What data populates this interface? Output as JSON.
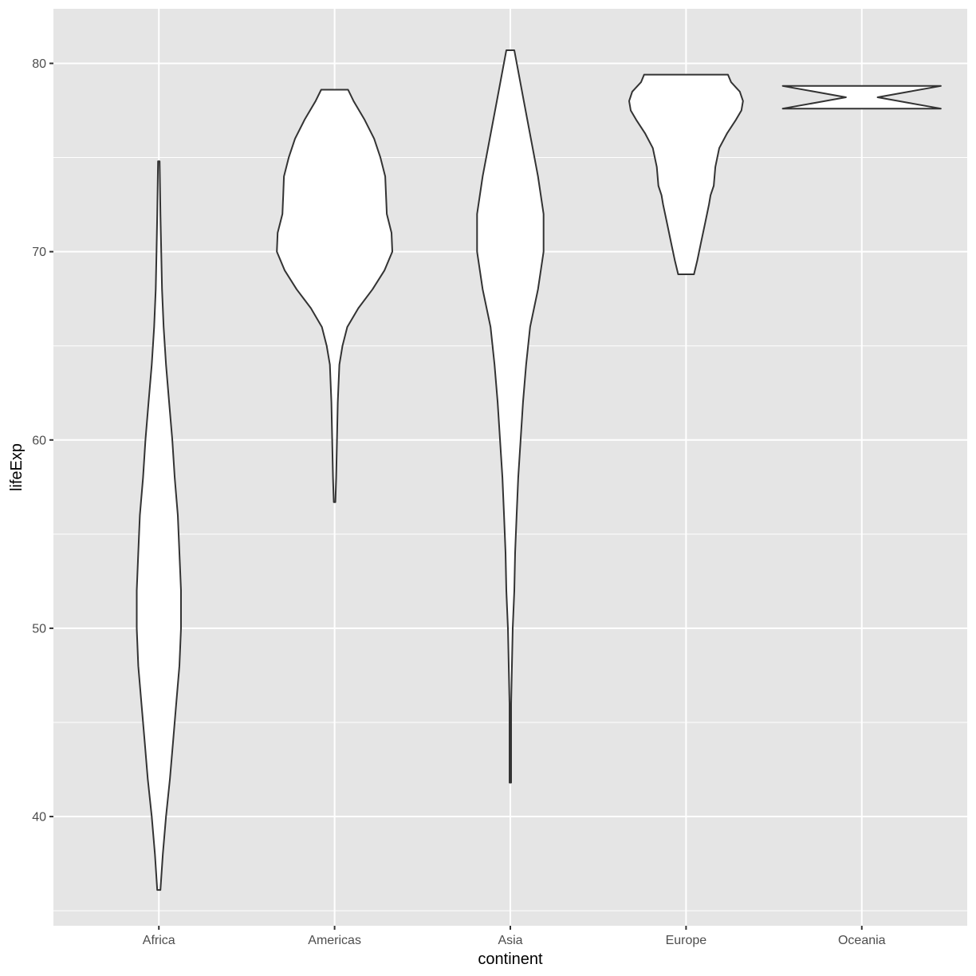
{
  "chart_data": {
    "type": "violin",
    "xlabel": "continent",
    "ylabel": "lifeExp",
    "categories": [
      "Africa",
      "Americas",
      "Asia",
      "Europe",
      "Oceania"
    ],
    "ylim": [
      34.2,
      82.9
    ],
    "yticks": [
      40,
      50,
      60,
      70,
      80
    ],
    "grid": true,
    "legend": "none",
    "colors": {
      "panel": "#e5e5e5",
      "grid": "#ffffff",
      "fill": "#ffffff",
      "outline": "#333333",
      "text": "#4d4d4d"
    },
    "violins": [
      {
        "category": "Africa",
        "min": 36.1,
        "max": 74.8,
        "profile": [
          [
            36.1,
            0.02
          ],
          [
            38,
            0.05
          ],
          [
            40,
            0.09
          ],
          [
            42,
            0.14
          ],
          [
            44,
            0.18
          ],
          [
            46,
            0.22
          ],
          [
            48,
            0.26
          ],
          [
            50,
            0.28
          ],
          [
            52,
            0.28
          ],
          [
            54,
            0.26
          ],
          [
            56,
            0.24
          ],
          [
            58,
            0.2
          ],
          [
            60,
            0.17
          ],
          [
            62,
            0.13
          ],
          [
            64,
            0.09
          ],
          [
            66,
            0.06
          ],
          [
            68,
            0.04
          ],
          [
            70,
            0.03
          ],
          [
            72,
            0.02
          ],
          [
            74.8,
            0.01
          ]
        ]
      },
      {
        "category": "Americas",
        "min": 56.7,
        "max": 78.6,
        "profile": [
          [
            56.7,
            0.01
          ],
          [
            58,
            0.02
          ],
          [
            60,
            0.03
          ],
          [
            62,
            0.04
          ],
          [
            64,
            0.06
          ],
          [
            65,
            0.1
          ],
          [
            66,
            0.16
          ],
          [
            67,
            0.3
          ],
          [
            68,
            0.48
          ],
          [
            69,
            0.63
          ],
          [
            70,
            0.73
          ],
          [
            71,
            0.72
          ],
          [
            72,
            0.66
          ],
          [
            73,
            0.65
          ],
          [
            74,
            0.64
          ],
          [
            75,
            0.58
          ],
          [
            76,
            0.5
          ],
          [
            77,
            0.38
          ],
          [
            78,
            0.24
          ],
          [
            78.6,
            0.17
          ]
        ]
      },
      {
        "category": "Asia",
        "min": 41.8,
        "max": 80.7,
        "profile": [
          [
            41.8,
            0.01
          ],
          [
            44,
            0.01
          ],
          [
            46,
            0.01
          ],
          [
            48,
            0.02
          ],
          [
            50,
            0.03
          ],
          [
            52,
            0.05
          ],
          [
            54,
            0.06
          ],
          [
            56,
            0.08
          ],
          [
            58,
            0.1
          ],
          [
            60,
            0.13
          ],
          [
            62,
            0.16
          ],
          [
            64,
            0.2
          ],
          [
            66,
            0.25
          ],
          [
            68,
            0.35
          ],
          [
            70,
            0.42
          ],
          [
            72,
            0.42
          ],
          [
            74,
            0.35
          ],
          [
            76,
            0.26
          ],
          [
            78,
            0.17
          ],
          [
            80.7,
            0.05
          ]
        ]
      },
      {
        "category": "Europe",
        "min": 68.8,
        "max": 79.4,
        "profile": [
          [
            68.8,
            0.1
          ],
          [
            69.5,
            0.14
          ],
          [
            70.5,
            0.19
          ],
          [
            71.5,
            0.24
          ],
          [
            72.5,
            0.29
          ],
          [
            73,
            0.31
          ],
          [
            73.5,
            0.35
          ],
          [
            74.5,
            0.37
          ],
          [
            75.5,
            0.42
          ],
          [
            76.3,
            0.52
          ],
          [
            77,
            0.63
          ],
          [
            77.5,
            0.7
          ],
          [
            78,
            0.72
          ],
          [
            78.5,
            0.68
          ],
          [
            79,
            0.57
          ],
          [
            79.4,
            0.53
          ]
        ]
      },
      {
        "category": "Oceania",
        "min": 77.6,
        "max": 78.8,
        "profile": [
          [
            77.6,
            1.0
          ],
          [
            77.9,
            0.6
          ],
          [
            78.2,
            0.2
          ],
          [
            78.5,
            0.6
          ],
          [
            78.8,
            1.0
          ]
        ]
      }
    ]
  }
}
